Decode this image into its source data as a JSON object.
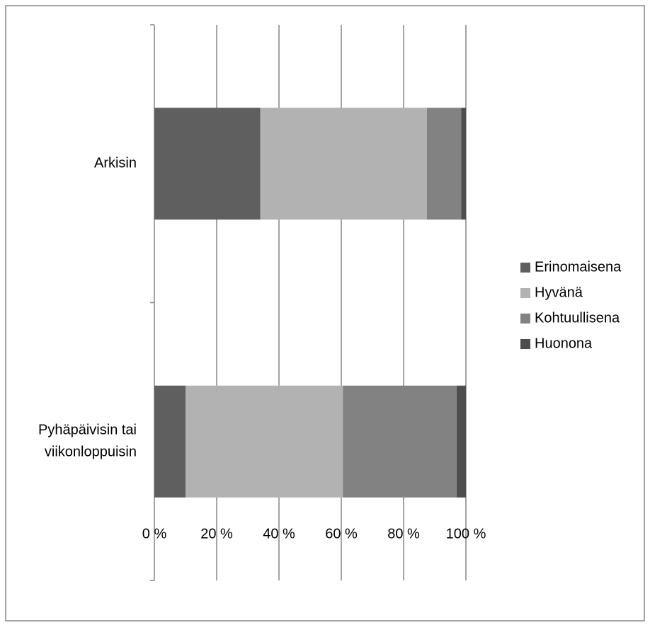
{
  "chart_data": {
    "type": "bar",
    "orientation": "horizontal",
    "stacked": true,
    "percent_stacked": true,
    "categories": [
      "Arkisin",
      "Pyhäpäivisin tai viikonloppuisin"
    ],
    "category_label_lines": [
      [
        "Arkisin"
      ],
      [
        "Pyhäpäivisin tai",
        "viikonloppuisin"
      ]
    ],
    "series": [
      {
        "name": "Erinomaisena",
        "values": [
          34,
          10
        ],
        "color": "#5f5f5f"
      },
      {
        "name": "Hyvänä",
        "values": [
          53.5,
          50.5
        ],
        "color": "#b2b2b2"
      },
      {
        "name": "Kohtuullisena",
        "values": [
          11,
          36.5
        ],
        "color": "#828282"
      },
      {
        "name": "Huonona",
        "values": [
          1.5,
          3
        ],
        "color": "#4d4d4d"
      }
    ],
    "xlim": [
      0,
      100
    ],
    "xticks": [
      0,
      20,
      40,
      60,
      80,
      100
    ],
    "xtick_labels": [
      "0 %",
      "20 %",
      "40 %",
      "60 %",
      "80 %",
      "100 %"
    ],
    "grid": true,
    "legend_position": "right",
    "title": "",
    "xlabel": "",
    "ylabel": ""
  }
}
